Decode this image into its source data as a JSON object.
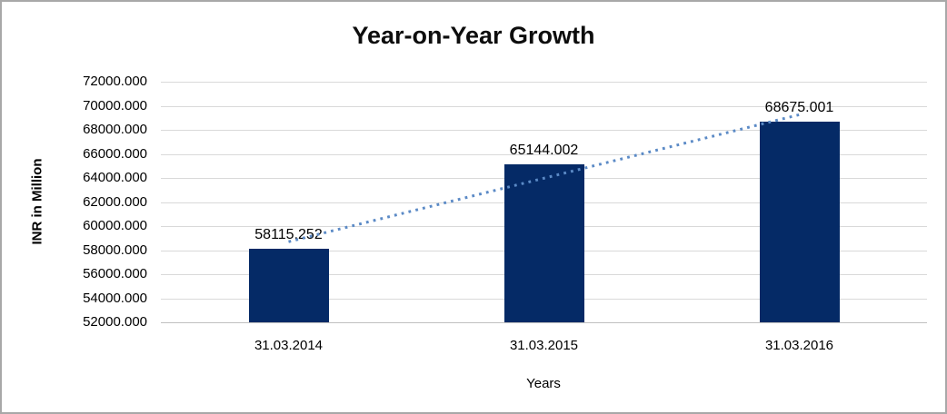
{
  "chart_data": {
    "type": "bar",
    "title": "Year-on-Year Growth",
    "categories": [
      "31.03.2014",
      "31.03.2015",
      "31.03.2016"
    ],
    "values": [
      58115.252,
      65144.002,
      68675.001
    ],
    "data_labels": [
      "58115.252",
      "65144.002",
      "68675.001"
    ],
    "xlabel": "Years",
    "ylabel": "INR in Million",
    "ylim": [
      52000,
      72000
    ],
    "ytick_step": 2000,
    "ytick_labels": [
      "72000.000",
      "70000.000",
      "68000.000",
      "66000.000",
      "64000.000",
      "62000.000",
      "60000.000",
      "58000.000",
      "56000.000",
      "54000.000",
      "52000.000"
    ],
    "grid": "horizontal",
    "legend": "none",
    "trendline": {
      "type": "linear",
      "style": "dotted"
    },
    "colors": {
      "bar": "#052a66",
      "trendline": "#5b8ac6",
      "gridline": "#d9d9d9",
      "axis_line": "#bfbfbf",
      "text": "#000000",
      "border": "#a8a8a8",
      "background": "#ffffff"
    }
  }
}
